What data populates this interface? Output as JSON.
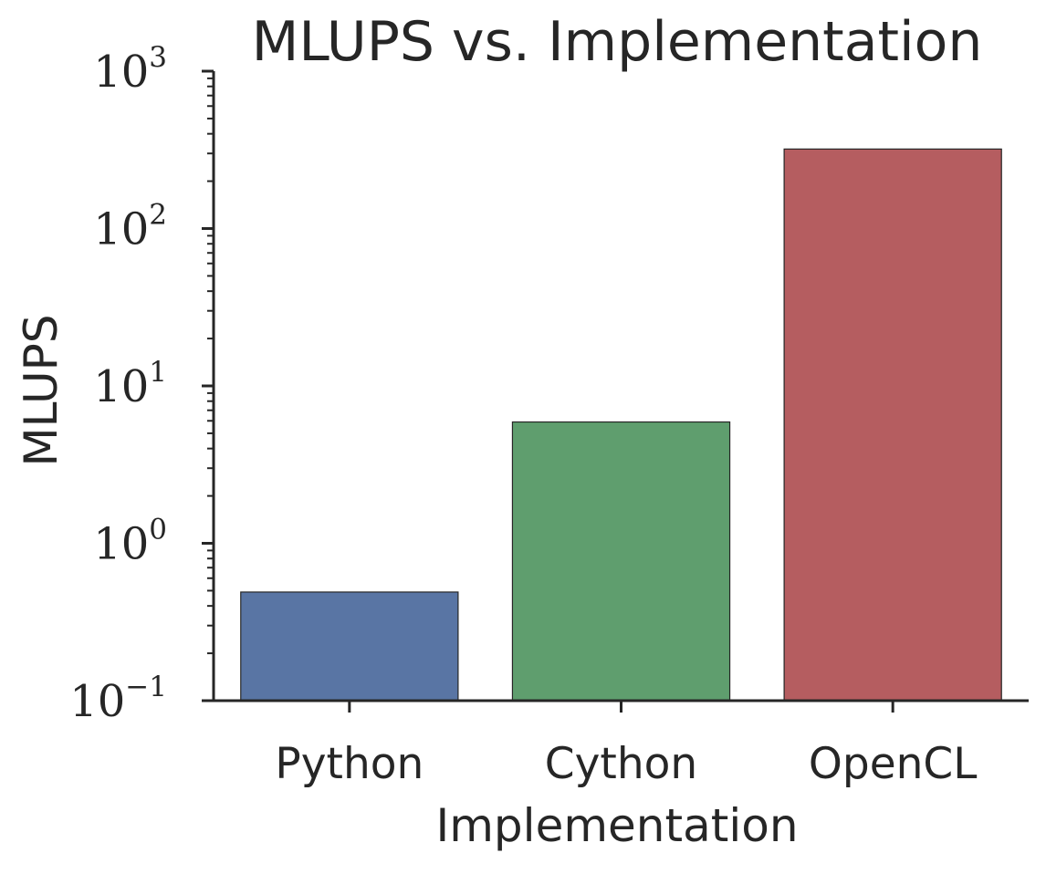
{
  "chart_data": {
    "type": "bar",
    "title": "MLUPS vs. Implementation",
    "xlabel": "Implementation",
    "ylabel": "MLUPS",
    "yscale": "log",
    "ylim": [
      0.1,
      1000
    ],
    "yticks": [
      {
        "base": "10",
        "exp": "−1",
        "value": 0.1
      },
      {
        "base": "10",
        "exp": "0",
        "value": 1
      },
      {
        "base": "10",
        "exp": "1",
        "value": 10
      },
      {
        "base": "10",
        "exp": "2",
        "value": 100
      },
      {
        "base": "10",
        "exp": "3",
        "value": 1000
      }
    ],
    "categories": [
      "Python",
      "Cython",
      "OpenCL"
    ],
    "values": [
      0.49,
      5.9,
      320
    ],
    "colors": [
      "#5975a4",
      "#5f9e6e",
      "#b55d60"
    ],
    "grid": false,
    "legend": "none"
  }
}
